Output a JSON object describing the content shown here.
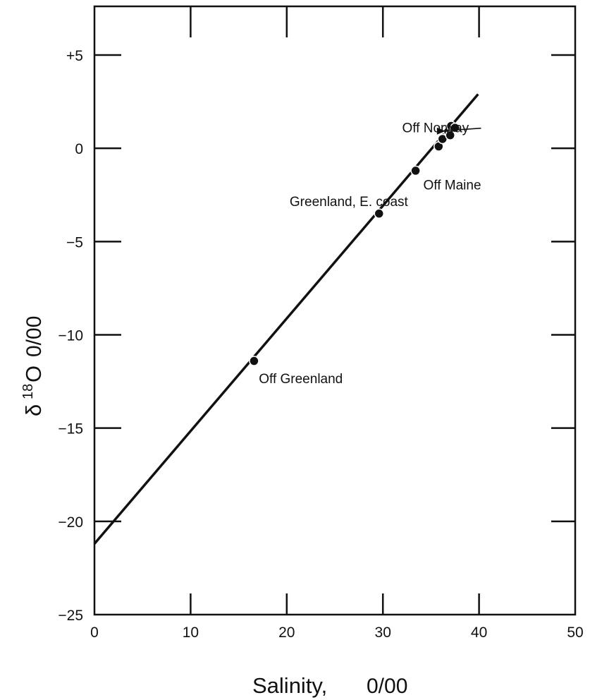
{
  "chart_data": {
    "type": "scatter",
    "xlabel": "Salinity,",
    "xlabel_unit": "0/00",
    "ylabel_prefix": "δ",
    "ylabel_sup": "18",
    "ylabel_main": "O",
    "ylabel_unit": "0/00",
    "xlim": [
      0,
      50
    ],
    "ylim": [
      -25,
      7.5
    ],
    "x_ticks": [
      0,
      10,
      20,
      30,
      40,
      50
    ],
    "y_ticks": [
      5,
      0,
      -5,
      -10,
      -15,
      -20,
      -25
    ],
    "x_tick_labels": [
      "0",
      "10",
      "20",
      "30",
      "40",
      "50"
    ],
    "y_tick_labels": [
      "+5",
      "0",
      "−5",
      "−10",
      "−15",
      "−20",
      "−25"
    ],
    "grid": false,
    "series": [
      {
        "points": [
          {
            "x": 16.6,
            "y": -11.4
          },
          {
            "x": 29.6,
            "y": -3.5
          },
          {
            "x": 33.4,
            "y": -1.2
          },
          {
            "x": 35.8,
            "y": 0.1
          },
          {
            "x": 36.2,
            "y": 0.5
          },
          {
            "x": 36.8,
            "y": 0.9
          },
          {
            "x": 37.0,
            "y": 0.7
          },
          {
            "x": 37.1,
            "y": 1.2
          },
          {
            "x": 37.5,
            "y": 1.1
          }
        ]
      }
    ],
    "fit_line": {
      "x": [
        0,
        39.9
      ],
      "y": [
        -21.2,
        2.9
      ]
    },
    "annotations": [
      {
        "text": "Off Norway",
        "x": 32.0,
        "y": 0.85,
        "arrow_to": {
          "x": 36.5,
          "y": 1.0
        }
      },
      {
        "text": "Off Maine",
        "x": 34.2,
        "y": -2.2
      },
      {
        "text": "Greenland, E. coast",
        "x": 20.3,
        "y": -3.1
      },
      {
        "text": "Off Greenland",
        "x": 17.1,
        "y": -12.6
      }
    ]
  }
}
